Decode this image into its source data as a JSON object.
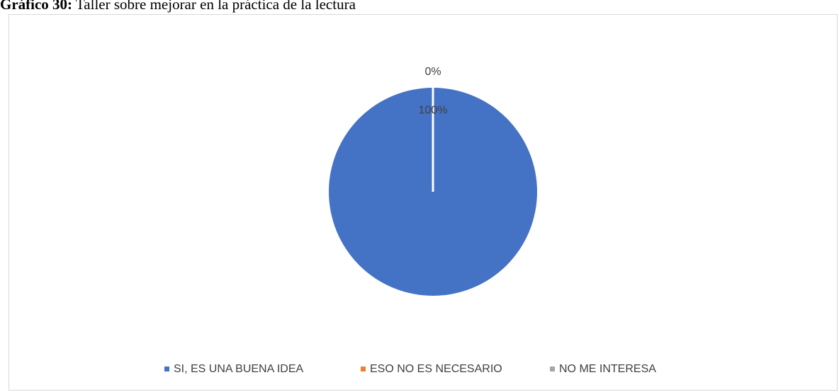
{
  "chart_data": {
    "type": "pie",
    "title_label": "Gráfico 30:",
    "title": "Taller sobre mejorar en la práctica de la lectura",
    "categories": [
      "SI, ES UNA BUENA IDEA",
      "ESO NO ES NECESARIO",
      "NO ME INTERESA"
    ],
    "values": [
      100,
      0,
      0
    ],
    "value_labels": [
      "100%",
      "0%",
      null
    ],
    "colors": [
      "#4472c4",
      "#ed7d31",
      "#a5a5a5"
    ],
    "legend": "bottom"
  }
}
